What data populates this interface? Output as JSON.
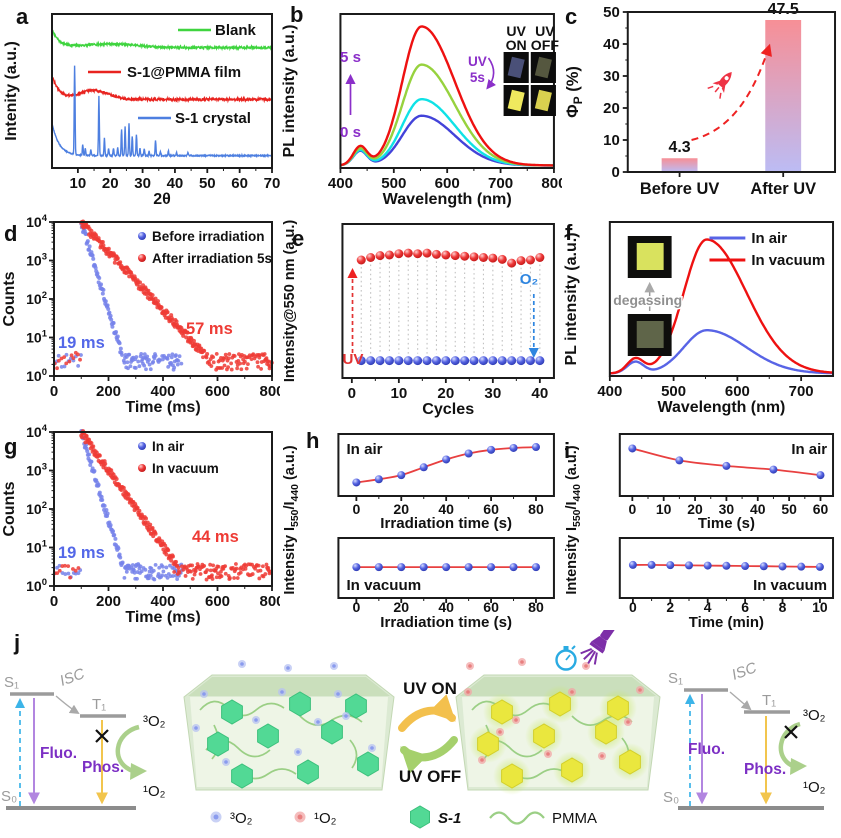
{
  "panels": {
    "a": "a",
    "b": "b",
    "c": "c",
    "d": "d",
    "e": "e",
    "f": "f",
    "g": "g",
    "h": "h",
    "i": "i",
    "j": "j"
  },
  "colors": {
    "blank_green": "#3fd43f",
    "film_red": "#e8231f",
    "crystal_blue": "#4d7fe0",
    "purple_annot": "#8b2fc9",
    "purple_text": "#7c2fc4",
    "fluo_arrow": "#b286e0",
    "phos_arrow": "#f2c54d",
    "excitation_arrow": "#3cb4e8",
    "gray_level": "#9b9b9b",
    "uv_on_arrow": "#f3c04d",
    "uv_off_arrow": "#a5d06c",
    "transfer_green": "#abd08b",
    "triplet_dot": "#b7c2f2",
    "singlet_dot": "#f1a6a6",
    "hexagon_green": "#52d995",
    "hexagon_yellow": "#eae73e",
    "pmma_line": "#9bcf85",
    "ball_red": "#ee3838",
    "ball_blue": "#5563e2",
    "line_red": "#e84040"
  },
  "chart_data": [
    {
      "panel": "a",
      "type": "line",
      "xlabel": "2θ",
      "ylabel": "Intenity (a.u.)",
      "xlim": [
        2,
        70
      ],
      "xticks": [
        10,
        20,
        30,
        40,
        50,
        60,
        70
      ],
      "series": [
        {
          "name": "Blank",
          "color": "#3fd43f",
          "baseline": 0.8,
          "hump": [
            20,
            8,
            0.025
          ],
          "tail": 0.12,
          "noise": 0.007
        },
        {
          "name": "S-1@PMMA film",
          "color": "#e8231f",
          "baseline": 0.45,
          "hump": [
            15,
            4.5,
            0.06
          ],
          "tail": 0.16,
          "noise": 0.009
        },
        {
          "name": "S-1 crystal",
          "color": "#4d7fe0",
          "baseline": 0.07,
          "tail": 0.22,
          "noise": 0.004,
          "peaks": [
            [
              9,
              0.6
            ],
            [
              11.5,
              0.07
            ],
            [
              12.3,
              0.05
            ],
            [
              14,
              0.04
            ],
            [
              16.5,
              0.4
            ],
            [
              18.2,
              0.12
            ],
            [
              19.5,
              0.05
            ],
            [
              21,
              0.05
            ],
            [
              22.3,
              0.06
            ],
            [
              23.5,
              0.18
            ],
            [
              24.6,
              0.2
            ],
            [
              25.8,
              0.22
            ],
            [
              26.8,
              0.13
            ],
            [
              28.1,
              0.14
            ],
            [
              29.2,
              0.05
            ],
            [
              30.5,
              0.05
            ],
            [
              32,
              0.03
            ],
            [
              34,
              0.1
            ],
            [
              35.5,
              0.03
            ],
            [
              38,
              0.03
            ],
            [
              40.5,
              0.02
            ],
            [
              44,
              0.02
            ]
          ]
        }
      ]
    },
    {
      "panel": "b",
      "type": "spectra",
      "xlabel": "Wavelength (nm)",
      "ylabel": "PL intensity (a.u.)",
      "xlim": [
        400,
        800
      ],
      "xticks": [
        400,
        500,
        600,
        700,
        800
      ],
      "peak1_nm": 437,
      "peak2_nm": 552,
      "series": [
        {
          "name": "0 s",
          "color": "#4343d9",
          "a440": 0.1,
          "a550": 0.345
        },
        {
          "name": "",
          "color": "#0fe2e6",
          "a440": 0.105,
          "a550": 0.46
        },
        {
          "name": "",
          "color": "#97d23e",
          "a440": 0.115,
          "a550": 0.7
        },
        {
          "name": "5 s",
          "color": "#ee1111",
          "a440": 0.13,
          "a550": 0.965
        }
      ],
      "annot": {
        "top": "5 s",
        "bottom": "0 s"
      },
      "inset": {
        "headers": [
          "UV",
          "UV"
        ],
        "subheaders": [
          "ON",
          "OFF"
        ],
        "label_line1": "UV",
        "label_line2": "5s"
      }
    },
    {
      "panel": "c",
      "type": "bar",
      "ylabel_segments": [
        {
          "t": "Φ"
        },
        {
          "t": "P",
          "sub": true
        },
        {
          "t": " (%)"
        }
      ],
      "categories": [
        "Before UV",
        "After UV"
      ],
      "values": [
        4.3,
        47.5
      ],
      "value_labels": [
        "4.3",
        "47.5"
      ],
      "ylim": [
        0,
        50
      ],
      "yticks": [
        0,
        10,
        20,
        30,
        40,
        50
      ],
      "bar_gradient": [
        "#f78f96",
        "#bcbcf4"
      ]
    },
    {
      "panel": "d",
      "type": "decay",
      "xlabel": "Time (ms)",
      "ylabel": "Counts",
      "xlim": [
        0,
        800
      ],
      "xticks": [
        0,
        200,
        400,
        600,
        800
      ],
      "ylog_decades": 4,
      "t0_ms": 100,
      "series": [
        {
          "name": "Before irradiation",
          "color": "#7683ea",
          "tau_ms": 19,
          "tau_label": "19 ms",
          "label_color": "#5468e8",
          "floor_end": 470
        },
        {
          "name": "After irradiation 5s",
          "color": "#ee3b35",
          "tau_ms": 57,
          "tau_label": "57 ms",
          "label_color": "#ee3b35",
          "floor_end": 800
        }
      ]
    },
    {
      "panel": "e",
      "type": "cycles",
      "xlabel": "Cycles",
      "ylabel": "Intensity@550 nm (a.u.)",
      "xlim": [
        -2,
        43
      ],
      "xticks": [
        0,
        10,
        20,
        30,
        40
      ],
      "x": [
        2,
        4,
        6,
        8,
        10,
        12,
        14,
        16,
        18,
        20,
        22,
        24,
        26,
        28,
        30,
        32,
        34,
        36,
        38,
        40
      ],
      "uv_on": [
        0.88,
        0.9,
        0.915,
        0.92,
        0.93,
        0.935,
        0.93,
        0.935,
        0.925,
        0.92,
        0.915,
        0.91,
        0.905,
        0.9,
        0.895,
        0.885,
        0.855,
        0.875,
        0.88,
        0.9
      ],
      "uv_off": [
        0.075,
        0.075,
        0.075,
        0.075,
        0.075,
        0.075,
        0.075,
        0.075,
        0.075,
        0.075,
        0.075,
        0.075,
        0.075,
        0.075,
        0.075,
        0.075,
        0.075,
        0.075,
        0.075,
        0.075
      ],
      "annot_uv": "UV",
      "annot_o2": "O₂"
    },
    {
      "panel": "f",
      "type": "spectra",
      "xlabel": "Wavelength (nm)",
      "ylabel": "PL intensity (a.u.)",
      "xlim": [
        400,
        750
      ],
      "xticks": [
        400,
        500,
        600,
        700
      ],
      "peak1_nm": 440,
      "peak2_nm": 552,
      "series": [
        {
          "name": "In air",
          "color": "#5864e6",
          "a440": 0.08,
          "a550": 0.3
        },
        {
          "name": "In vacuum",
          "color": "#ee1111",
          "a440": 0.1,
          "a550": 0.93
        }
      ],
      "legend": [
        "In air",
        "In vacuum"
      ],
      "inset_label": "degassing"
    },
    {
      "panel": "g",
      "type": "decay",
      "xlabel": "Time (ms)",
      "ylabel": "Counts",
      "xlim": [
        0,
        800
      ],
      "xticks": [
        0,
        200,
        400,
        600,
        800
      ],
      "ylog_decades": 4,
      "t0_ms": 100,
      "series": [
        {
          "name": "In air",
          "color": "#7683ea",
          "tau_ms": 19,
          "tau_label": "19 ms",
          "label_color": "#5468e8",
          "floor_end": 470
        },
        {
          "name": "In vacuum",
          "color": "#ee3b35",
          "tau_ms": 44,
          "tau_label": "44 ms",
          "label_color": "#ee3b35",
          "floor_end": 800
        }
      ]
    },
    {
      "panel": "h",
      "type": "dotline2",
      "ylabel_segments": [
        {
          "t": "Intensity I"
        },
        {
          "t": "550",
          "sub": true
        },
        {
          "t": "/I"
        },
        {
          "t": "440",
          "sub": true
        },
        {
          "t": " (a.u.)"
        }
      ],
      "subplots": [
        {
          "label": "In air",
          "label_corner": "tl",
          "xlabel": "Irradiation time (s)",
          "xlim": [
            -8,
            88
          ],
          "xticks": [
            0,
            20,
            40,
            60,
            80
          ],
          "x": [
            0,
            10,
            20,
            30,
            40,
            50,
            60,
            70,
            80
          ],
          "y": [
            0.12,
            0.19,
            0.28,
            0.45,
            0.62,
            0.75,
            0.83,
            0.87,
            0.89
          ]
        },
        {
          "label": "In vacuum",
          "label_corner": "bl",
          "xlabel": "Irradiation time (s)",
          "xlim": [
            -8,
            88
          ],
          "xticks": [
            0,
            20,
            40,
            60,
            80
          ],
          "x": [
            0,
            10,
            20,
            30,
            40,
            50,
            60,
            70,
            80
          ],
          "y": [
            0.52,
            0.52,
            0.52,
            0.52,
            0.52,
            0.52,
            0.52,
            0.52,
            0.52
          ]
        }
      ]
    },
    {
      "panel": "i",
      "type": "dotline2",
      "ylabel_segments": [
        {
          "t": "Intensity I"
        },
        {
          "t": "550",
          "sub": true
        },
        {
          "t": "/I"
        },
        {
          "t": "440",
          "sub": true
        },
        {
          "t": " (a.u.)"
        }
      ],
      "subplots": [
        {
          "label": "In air",
          "label_corner": "tr",
          "xlabel": "Time (s)",
          "xlim": [
            -4,
            64
          ],
          "xticks": [
            0,
            10,
            20,
            30,
            40,
            50,
            60
          ],
          "x": [
            0,
            15,
            30,
            45,
            60
          ],
          "y": [
            0.86,
            0.6,
            0.48,
            0.4,
            0.28
          ]
        },
        {
          "label": "In vacuum",
          "label_corner": "br",
          "xlabel": "Time (min)",
          "xlim": [
            -0.7,
            10.7
          ],
          "xticks": [
            0,
            2,
            4,
            6,
            8,
            10
          ],
          "x": [
            0,
            1,
            2,
            3,
            4,
            5,
            6,
            7,
            8,
            9,
            10
          ],
          "y": [
            0.57,
            0.57,
            0.565,
            0.56,
            0.555,
            0.55,
            0.545,
            0.54,
            0.535,
            0.53,
            0.525
          ]
        }
      ]
    }
  ],
  "scheme": {
    "uv_on": "UV ON",
    "uv_off": "UV OFF",
    "energy_levels": {
      "s1": "S₁",
      "t1": "T₁",
      "s0": "S₀",
      "isc": "ISC",
      "fluo": "Fluo.",
      "phos": "Phos.",
      "triplet_oxygen": "³O₂",
      "singlet_oxygen": "¹O₂"
    },
    "legend": {
      "triplet_oxygen": "³O₂",
      "singlet_oxygen": "¹O₂",
      "compound": "S-1",
      "polymer": "PMMA"
    }
  }
}
